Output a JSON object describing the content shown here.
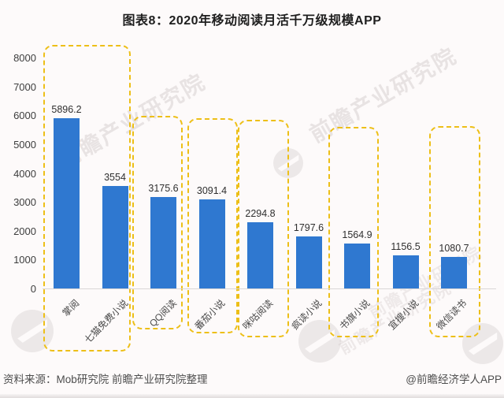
{
  "title": "图表8：2020年移动阅读月活千万级规模APP",
  "chart_data": {
    "type": "bar",
    "title": "图表8：2020年移动阅读月活千万级规模APP",
    "categories": [
      "掌阅",
      "七猫免费小说",
      "QQ阅读",
      "番茄小说",
      "咪咕阅读",
      "疯读小说",
      "书旗小说",
      "宜搜小说",
      "微信读书"
    ],
    "values": [
      5896.2,
      3554,
      3175.6,
      3091.4,
      2294.8,
      1797.6,
      1564.9,
      1156.5,
      1080.7
    ],
    "xlabel": "",
    "ylabel": "",
    "ylim": [
      0,
      8000
    ],
    "yticks": [
      0,
      1000,
      2000,
      3000,
      4000,
      5000,
      6000,
      7000,
      8000
    ],
    "grid": "off",
    "legend": "none",
    "bar_color": "#2f78d0",
    "highlight_box_color": "#edbf17",
    "highlighted_groups": [
      [
        0,
        1
      ],
      [
        2
      ],
      [
        3
      ],
      [
        4
      ],
      [
        6
      ],
      [
        8
      ]
    ]
  },
  "watermark": {
    "text": "前瞻产业研究院"
  },
  "footer": {
    "source": "资料来源：Mob研究院  前瞻产业研究院整理",
    "credit": "@前瞻经济学人APP"
  }
}
